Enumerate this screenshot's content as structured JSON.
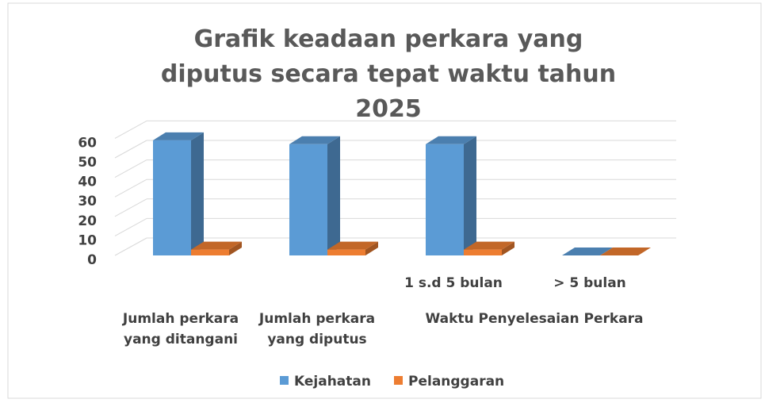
{
  "chart_data": {
    "type": "bar3d",
    "title": "Grafik keadaan perkara yang diputus secara tepat waktu tahun 2025",
    "categories": [
      "Jumlah perkara yang ditangani",
      "Jumlah perkara yang diputus",
      "1 s.d 5 bulan",
      "> 5 bulan"
    ],
    "category_group": {
      "label": "Waktu Penyelesaian Perkara",
      "members": [
        2,
        3
      ]
    },
    "series": [
      {
        "name": "Kejahatan",
        "color": "#5b9bd5",
        "values": [
          59,
          57,
          57,
          0
        ]
      },
      {
        "name": "Pelanggaran",
        "color": "#ed7d31",
        "values": [
          3,
          3,
          3,
          0
        ]
      }
    ],
    "ylim": [
      0,
      60
    ],
    "yticks": [
      0,
      10,
      20,
      30,
      40,
      50,
      60
    ],
    "grid": true,
    "legend": "bottom"
  }
}
